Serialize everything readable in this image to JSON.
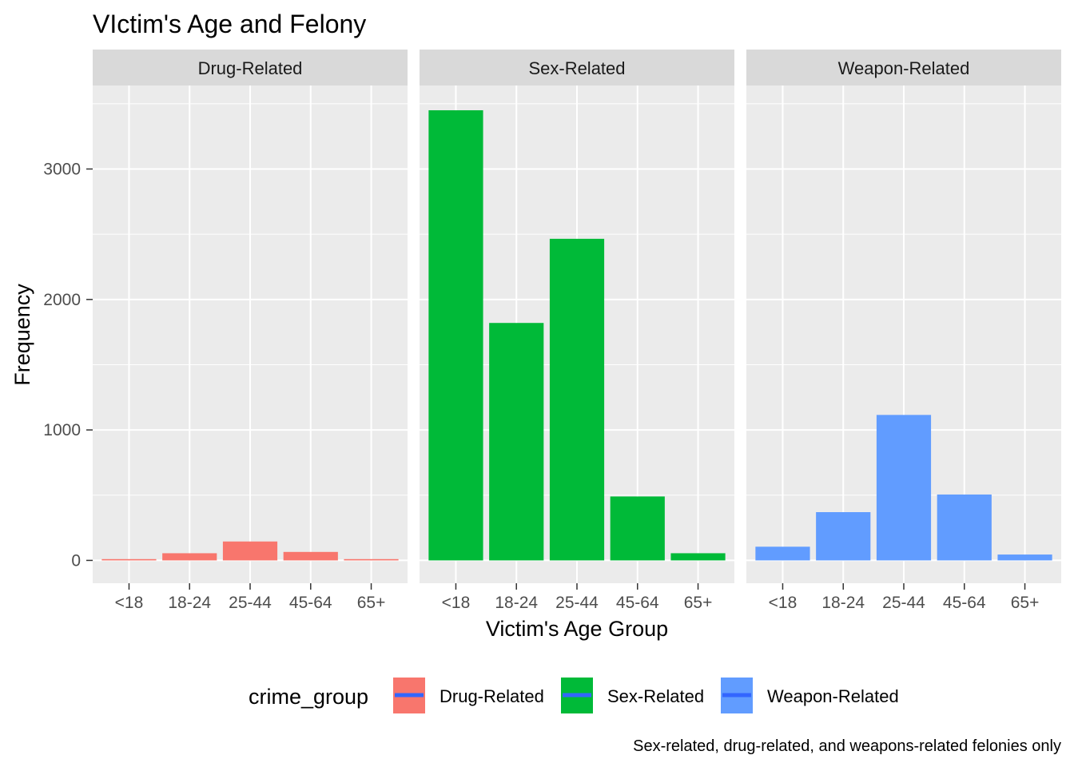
{
  "chart_data": {
    "type": "bar",
    "title": "VIctim's Age and Felony",
    "xlabel": "Victim's Age Group",
    "ylabel": "Frequency",
    "caption": "Sex-related, drug-related, and weapons-related felonies only",
    "categories": [
      "<18",
      "18-24",
      "25-44",
      "45-64",
      "65+"
    ],
    "ylim": [
      -175,
      3640
    ],
    "yticks": [
      0,
      1000,
      2000,
      3000
    ],
    "grid": true,
    "legend": {
      "title": "crime_group",
      "position": "bottom",
      "items": [
        "Drug-Related",
        "Sex-Related",
        "Weapon-Related"
      ],
      "key_line_color": "#3366ff"
    },
    "panel_background": "#ebebeb",
    "strip_background": "#d9d9d9",
    "series": [
      {
        "name": "Drug-Related",
        "color": "#f8766d",
        "values": [
          10,
          55,
          145,
          65,
          10
        ]
      },
      {
        "name": "Sex-Related",
        "color": "#00ba38",
        "values": [
          3450,
          1820,
          2465,
          490,
          55
        ]
      },
      {
        "name": "Weapon-Related",
        "color": "#619cff",
        "values": [
          105,
          370,
          1115,
          505,
          45
        ]
      }
    ]
  }
}
